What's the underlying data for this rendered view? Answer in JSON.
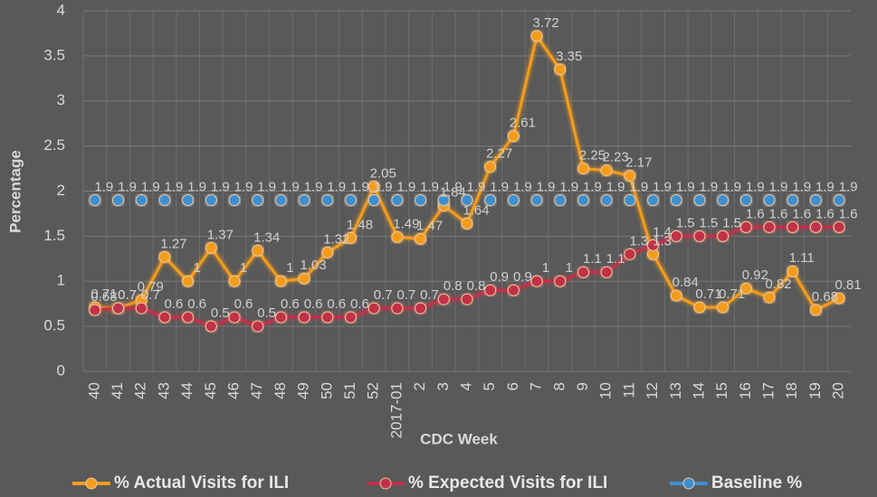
{
  "chart_data": {
    "type": "line",
    "x_label": "CDC Week",
    "y_label": "Percentage",
    "categories": [
      "40",
      "41",
      "42",
      "43",
      "44",
      "45",
      "46",
      "47",
      "48",
      "49",
      "50",
      "51",
      "52",
      "2017-01",
      "2",
      "3",
      "4",
      "5",
      "6",
      "7",
      "8",
      "9",
      "10",
      "11",
      "12",
      "13",
      "14",
      "15",
      "16",
      "17",
      "18",
      "19",
      "20"
    ],
    "series": [
      {
        "name": "% Actual Visits for ILI",
        "color": "#f39c1f",
        "values": [
          0.71,
          0.7,
          0.79,
          1.27,
          1,
          1.37,
          1,
          1.34,
          1,
          1.03,
          1.32,
          1.48,
          2.05,
          1.49,
          1.47,
          1.84,
          1.64,
          2.27,
          2.61,
          3.72,
          3.35,
          2.25,
          2.23,
          2.17,
          1.3,
          0.84,
          0.71,
          0.71,
          0.92,
          0.82,
          1.11,
          0.68,
          0.81
        ]
      },
      {
        "name": "% Expected Visits for ILI",
        "color": "#c0304a",
        "values": [
          0.68,
          0.7,
          0.7,
          0.6,
          0.6,
          0.5,
          0.6,
          0.5,
          0.6,
          0.6,
          0.6,
          0.6,
          0.7,
          0.7,
          0.7,
          0.8,
          0.8,
          0.9,
          0.9,
          1,
          1,
          1.1,
          1.1,
          1.3,
          1.4,
          1.5,
          1.5,
          1.5,
          1.6,
          1.6,
          1.6,
          1.6,
          1.6
        ]
      },
      {
        "name": "Baseline %",
        "color": "#3d8fd0",
        "values": [
          1.9,
          1.9,
          1.9,
          1.9,
          1.9,
          1.9,
          1.9,
          1.9,
          1.9,
          1.9,
          1.9,
          1.9,
          1.9,
          1.9,
          1.9,
          1.9,
          1.9,
          1.9,
          1.9,
          1.9,
          1.9,
          1.9,
          1.9,
          1.9,
          1.9,
          1.9,
          1.9,
          1.9,
          1.9,
          1.9,
          1.9,
          1.9,
          1.9
        ]
      }
    ],
    "ylim": [
      0,
      4
    ],
    "yticks": [
      0,
      0.5,
      1,
      1.5,
      2,
      2.5,
      3,
      3.5,
      4
    ],
    "grid": true,
    "legend": "bottom"
  }
}
